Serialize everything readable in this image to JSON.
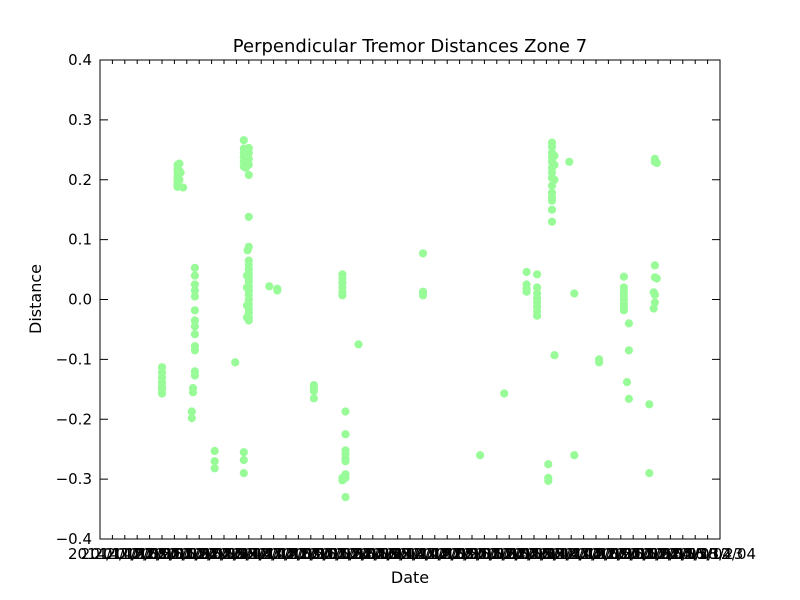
{
  "chart_data": {
    "type": "scatter",
    "title": "Perpendicular Tremor Distances Zone 7",
    "xlabel": "Date",
    "ylabel": "Distance",
    "ylim": [
      -0.4,
      0.4
    ],
    "yticks": [
      -0.4,
      -0.3,
      -0.2,
      -0.1,
      0.0,
      0.1,
      0.2,
      0.3,
      0.4
    ],
    "ytick_labels": [
      "−0.4",
      "−0.3",
      "−0.2",
      "−0.1",
      "0.0",
      "0.1",
      "0.2",
      "0.3",
      "0.4"
    ],
    "xtick_labels_text": "2014/11/27 overlapping date labels",
    "xlim": [
      0,
      100
    ],
    "grid": false,
    "marker_color": "#98fb98",
    "series": [
      {
        "values": [
          [
            10.0,
            -0.113
          ],
          [
            10.0,
            -0.122
          ],
          [
            10.0,
            -0.13
          ],
          [
            10.0,
            -0.138
          ],
          [
            10.0,
            -0.145
          ],
          [
            10.0,
            -0.15
          ],
          [
            10.0,
            -0.157
          ],
          [
            12.5,
            0.225
          ],
          [
            12.5,
            0.218
          ],
          [
            12.5,
            0.212
          ],
          [
            12.5,
            0.205
          ],
          [
            12.5,
            0.198
          ],
          [
            12.5,
            0.192
          ],
          [
            12.5,
            0.188
          ],
          [
            12.8,
            0.227
          ],
          [
            12.8,
            0.215
          ],
          [
            12.8,
            0.2
          ],
          [
            13.0,
            0.212
          ],
          [
            13.4,
            0.187
          ],
          [
            15.3,
            0.053
          ],
          [
            15.3,
            0.04
          ],
          [
            15.3,
            0.025
          ],
          [
            15.3,
            0.015
          ],
          [
            15.3,
            0.005
          ],
          [
            15.3,
            -0.018
          ],
          [
            15.3,
            -0.035
          ],
          [
            15.3,
            -0.045
          ],
          [
            15.3,
            -0.058
          ],
          [
            15.3,
            -0.078
          ],
          [
            15.3,
            -0.085
          ],
          [
            15.3,
            -0.12
          ],
          [
            15.3,
            -0.127
          ],
          [
            15.0,
            -0.148
          ],
          [
            15.0,
            -0.155
          ],
          [
            14.8,
            -0.187
          ],
          [
            14.8,
            -0.198
          ],
          [
            18.5,
            -0.253
          ],
          [
            18.5,
            -0.27
          ],
          [
            18.5,
            -0.282
          ],
          [
            21.8,
            -0.105
          ],
          [
            23.2,
            0.266
          ],
          [
            23.2,
            0.252
          ],
          [
            23.2,
            0.245
          ],
          [
            23.2,
            0.238
          ],
          [
            23.2,
            0.23
          ],
          [
            23.2,
            0.222
          ],
          [
            23.5,
            0.235
          ],
          [
            23.5,
            0.228
          ],
          [
            23.5,
            0.22
          ],
          [
            23.2,
            -0.255
          ],
          [
            23.2,
            -0.268
          ],
          [
            23.2,
            -0.29
          ],
          [
            24.0,
            0.253
          ],
          [
            24.0,
            0.245
          ],
          [
            24.0,
            0.235
          ],
          [
            24.0,
            0.225
          ],
          [
            24.0,
            0.208
          ],
          [
            24.0,
            0.138
          ],
          [
            24.0,
            0.088
          ],
          [
            23.8,
            0.082
          ],
          [
            24.0,
            0.065
          ],
          [
            24.0,
            0.058
          ],
          [
            24.0,
            0.05
          ],
          [
            24.0,
            0.043
          ],
          [
            24.0,
            0.037
          ],
          [
            24.0,
            0.03
          ],
          [
            24.0,
            0.022
          ],
          [
            24.0,
            0.015
          ],
          [
            24.0,
            0.008
          ],
          [
            24.0,
            0.0
          ],
          [
            24.0,
            -0.008
          ],
          [
            24.0,
            -0.015
          ],
          [
            24.0,
            -0.022
          ],
          [
            24.0,
            -0.03
          ],
          [
            24.0,
            -0.035
          ],
          [
            23.7,
            0.04
          ],
          [
            23.7,
            0.02
          ],
          [
            23.7,
            -0.01
          ],
          [
            23.7,
            -0.03
          ],
          [
            27.3,
            0.022
          ],
          [
            28.6,
            0.018
          ],
          [
            28.6,
            0.015
          ],
          [
            34.5,
            -0.143
          ],
          [
            34.5,
            -0.148
          ],
          [
            34.5,
            -0.153
          ],
          [
            34.5,
            -0.165
          ],
          [
            39.1,
            0.042
          ],
          [
            39.1,
            0.035
          ],
          [
            39.1,
            0.028
          ],
          [
            39.1,
            0.02
          ],
          [
            39.1,
            0.012
          ],
          [
            39.1,
            0.007
          ],
          [
            39.1,
            -0.298
          ],
          [
            39.1,
            -0.302
          ],
          [
            39.6,
            -0.187
          ],
          [
            39.6,
            -0.225
          ],
          [
            39.6,
            -0.252
          ],
          [
            39.6,
            -0.258
          ],
          [
            39.6,
            -0.265
          ],
          [
            39.6,
            -0.27
          ],
          [
            39.6,
            -0.292
          ],
          [
            39.6,
            -0.298
          ],
          [
            39.6,
            -0.33
          ],
          [
            41.7,
            -0.075
          ],
          [
            52.1,
            0.077
          ],
          [
            52.1,
            0.013
          ],
          [
            52.1,
            0.007
          ],
          [
            61.3,
            -0.26
          ],
          [
            65.2,
            -0.157
          ],
          [
            68.8,
            0.046
          ],
          [
            68.8,
            0.025
          ],
          [
            68.8,
            0.018
          ],
          [
            68.8,
            0.013
          ],
          [
            70.5,
            0.042
          ],
          [
            70.5,
            0.02
          ],
          [
            70.5,
            0.01
          ],
          [
            70.5,
            0.002
          ],
          [
            70.5,
            -0.005
          ],
          [
            70.5,
            -0.012
          ],
          [
            70.5,
            -0.02
          ],
          [
            70.5,
            -0.027
          ],
          [
            72.3,
            -0.275
          ],
          [
            72.3,
            -0.298
          ],
          [
            72.3,
            -0.303
          ],
          [
            72.9,
            0.262
          ],
          [
            72.9,
            0.255
          ],
          [
            72.9,
            0.245
          ],
          [
            72.9,
            0.238
          ],
          [
            72.9,
            0.23
          ],
          [
            72.9,
            0.22
          ],
          [
            72.9,
            0.212
          ],
          [
            72.9,
            0.203
          ],
          [
            72.9,
            0.19
          ],
          [
            72.9,
            0.178
          ],
          [
            72.9,
            0.17
          ],
          [
            72.9,
            0.165
          ],
          [
            72.9,
            0.15
          ],
          [
            72.9,
            0.13
          ],
          [
            73.3,
            0.24
          ],
          [
            73.3,
            0.225
          ],
          [
            73.3,
            0.2
          ],
          [
            73.3,
            -0.093
          ],
          [
            75.7,
            0.23
          ],
          [
            76.5,
            0.01
          ],
          [
            76.5,
            -0.26
          ],
          [
            80.5,
            -0.1
          ],
          [
            80.5,
            -0.105
          ],
          [
            84.5,
            0.038
          ],
          [
            84.5,
            0.02
          ],
          [
            84.5,
            0.013
          ],
          [
            84.5,
            0.007
          ],
          [
            84.5,
            0.0
          ],
          [
            84.5,
            -0.007
          ],
          [
            84.5,
            -0.013
          ],
          [
            84.5,
            -0.018
          ],
          [
            85.0,
            -0.138
          ],
          [
            85.3,
            -0.04
          ],
          [
            85.3,
            -0.085
          ],
          [
            85.3,
            -0.166
          ],
          [
            88.6,
            -0.175
          ],
          [
            88.6,
            -0.29
          ],
          [
            89.5,
            0.235
          ],
          [
            89.5,
            0.23
          ],
          [
            89.8,
            0.228
          ],
          [
            89.5,
            0.057
          ],
          [
            89.5,
            0.037
          ],
          [
            89.8,
            0.035
          ],
          [
            89.3,
            0.012
          ],
          [
            89.5,
            0.008
          ],
          [
            89.5,
            -0.005
          ],
          [
            89.3,
            -0.015
          ]
        ]
      }
    ]
  }
}
